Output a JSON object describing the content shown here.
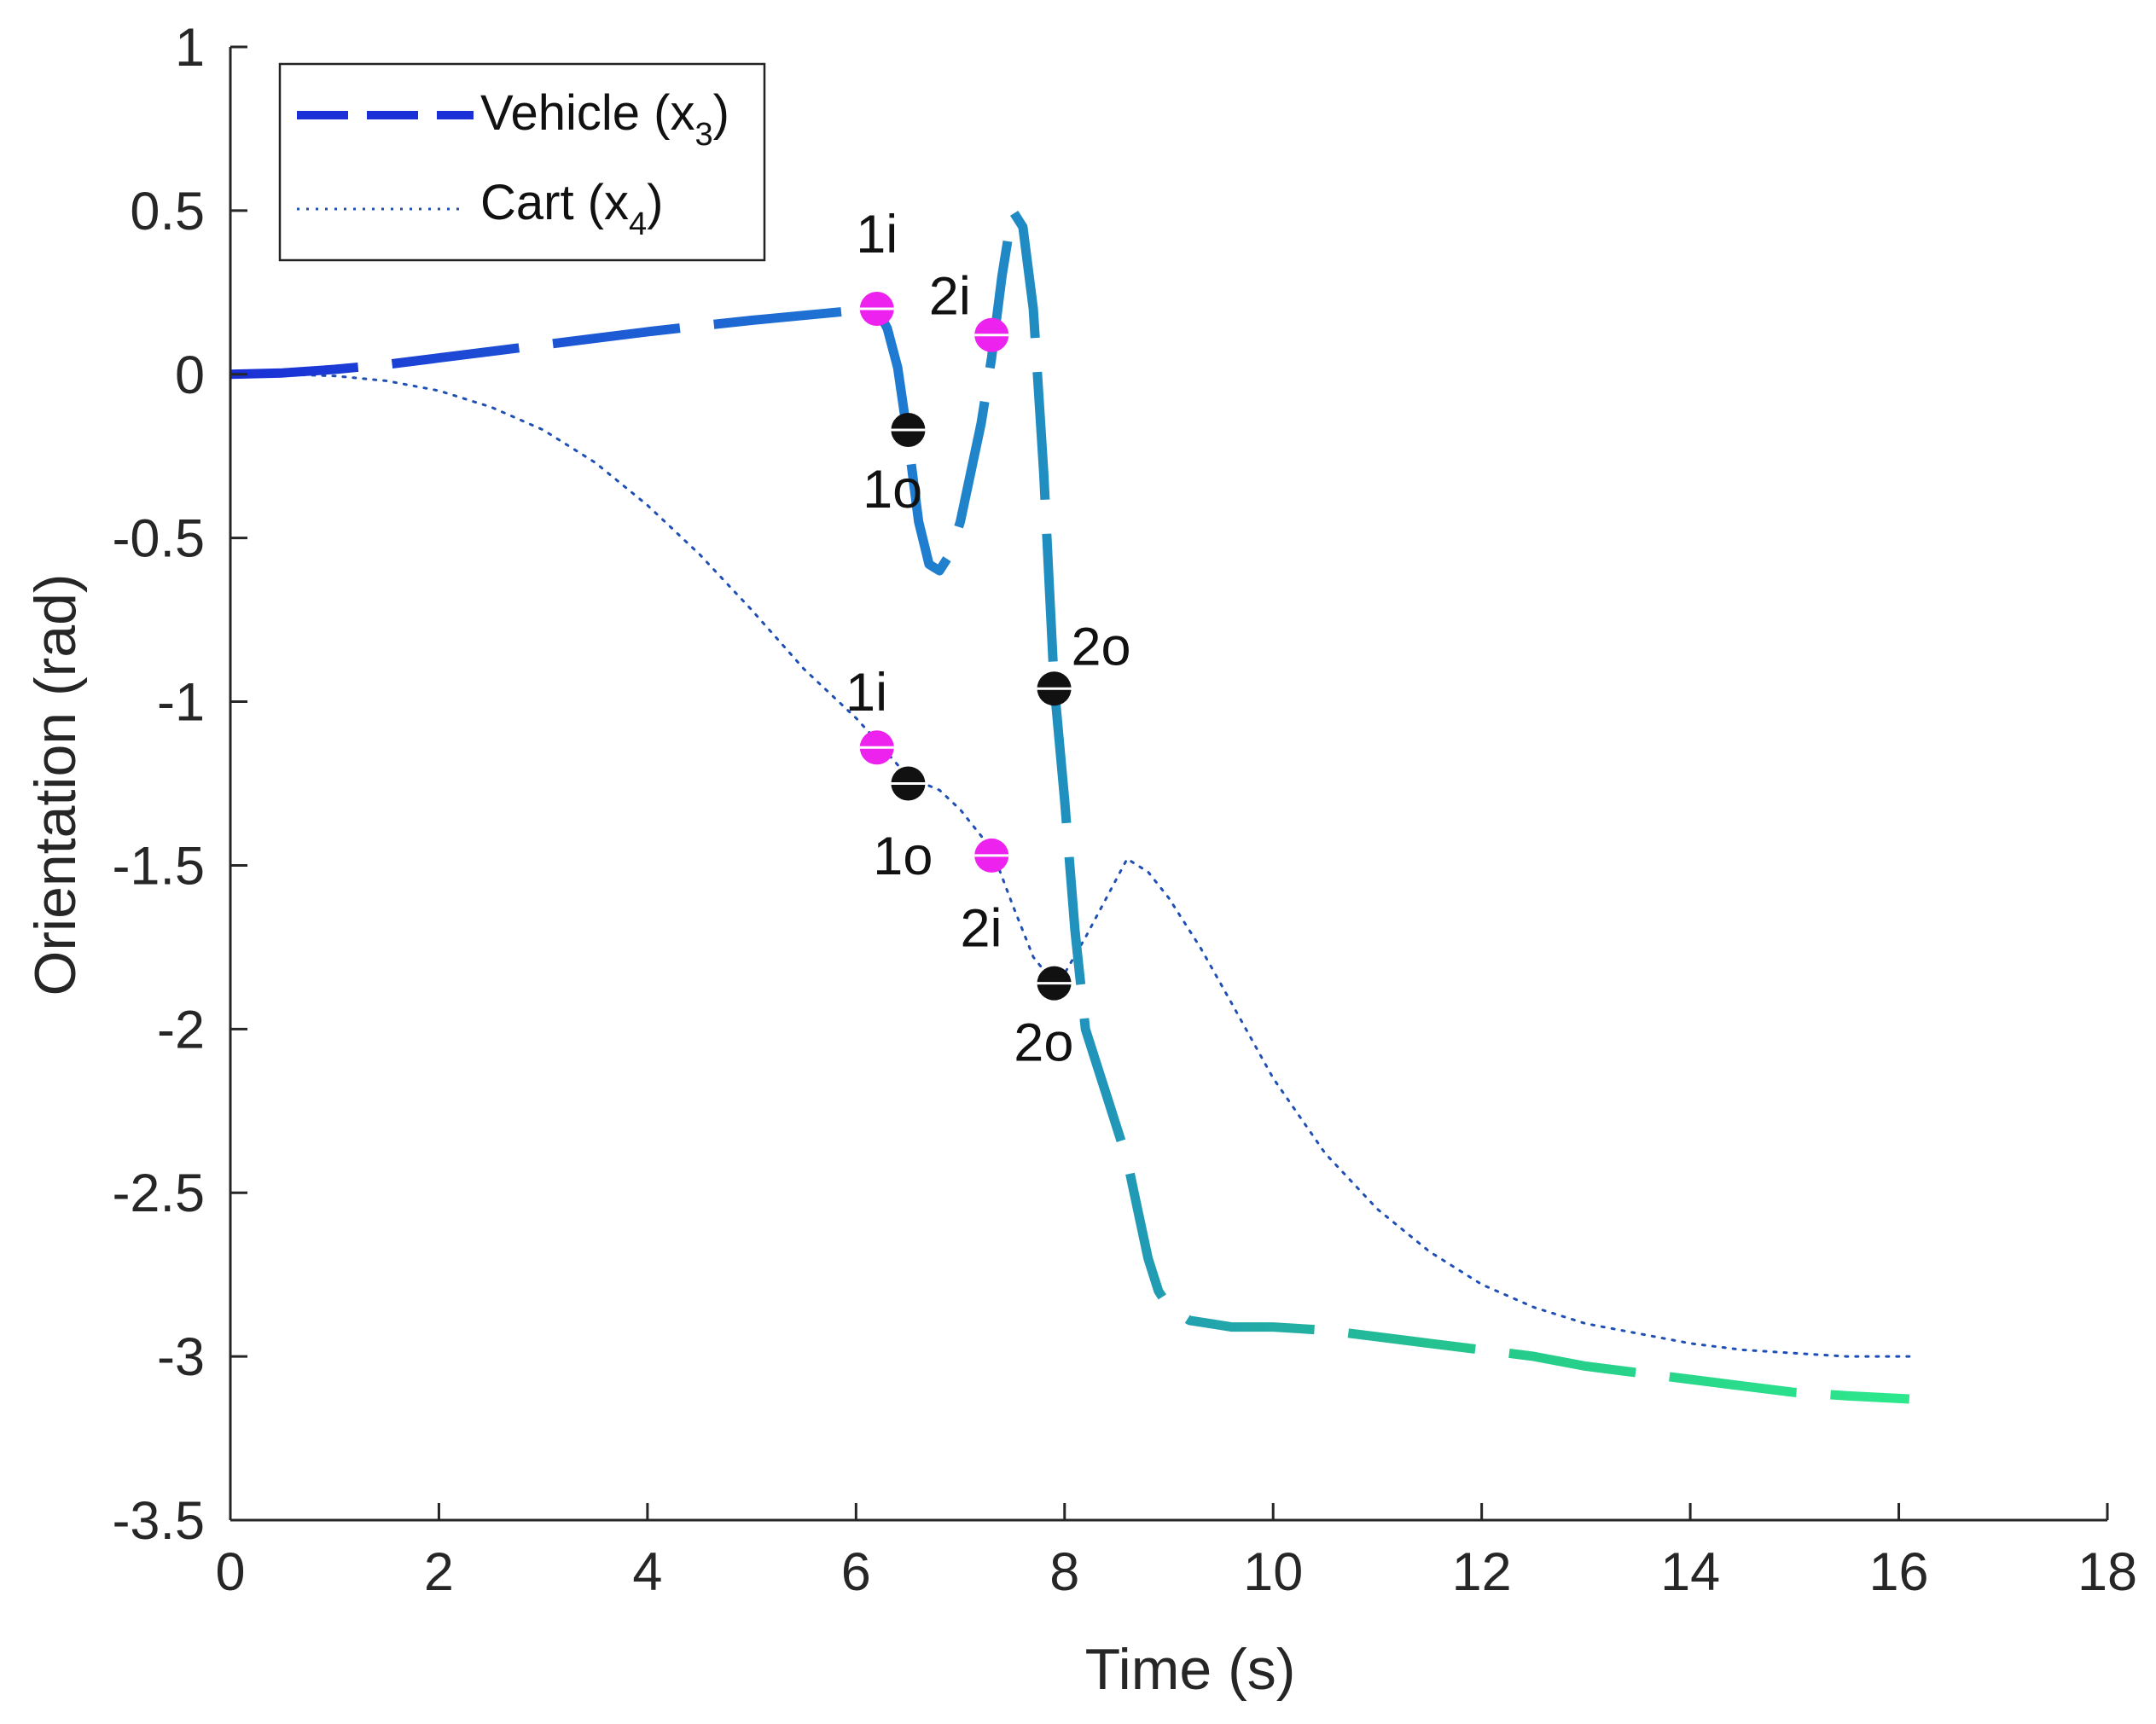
{
  "chart_data": {
    "type": "line",
    "title": "",
    "xlabel": "Time (s)",
    "ylabel": "Orientation (rad)",
    "xlim": [
      0,
      18
    ],
    "ylim": [
      -3.5,
      1
    ],
    "xticks": [
      0,
      2,
      4,
      6,
      8,
      10,
      12,
      14,
      16,
      18
    ],
    "xtick_labels": [
      "0",
      "2",
      "4",
      "6",
      "8",
      "10",
      "12",
      "14",
      "16",
      "18"
    ],
    "yticks": [
      1,
      0.5,
      0,
      -0.5,
      -1,
      -1.5,
      -2,
      -2.5,
      -3,
      -3.5
    ],
    "ytick_labels": [
      "1",
      "0.5",
      "0",
      "-0.5",
      "-1",
      "-1.5",
      "-2",
      "-2.5",
      "-3",
      "-3.5"
    ],
    "grid": false,
    "legend_position": "top-left",
    "series": [
      {
        "name": "Vehicle",
        "legend_label": "Vehicle (x",
        "legend_sub": "3",
        "style": "dashed",
        "colors": [
          "#1a2fd6",
          "#1f7bd2",
          "#24c98a",
          "#2de88c"
        ],
        "x": [
          0,
          0.5,
          1,
          1.5,
          2,
          2.5,
          3,
          3.5,
          4,
          4.5,
          5,
          5.5,
          6,
          6.2,
          6.3,
          6.4,
          6.5,
          6.6,
          6.7,
          6.8,
          6.9,
          7.0,
          7.1,
          7.2,
          7.3,
          7.4,
          7.5,
          7.6,
          7.7,
          7.8,
          7.9,
          8.0,
          8.1,
          8.2,
          8.3,
          8.4,
          8.5,
          8.6,
          8.7,
          8.8,
          8.9,
          9.0,
          9.2,
          9.4,
          9.6,
          9.8,
          10,
          10.5,
          11,
          11.5,
          12,
          12.5,
          13,
          13.5,
          14,
          14.5,
          15,
          15.5,
          16.1
        ],
        "y": [
          0,
          0.004,
          0.015,
          0.03,
          0.05,
          0.07,
          0.09,
          0.11,
          0.13,
          0.148,
          0.165,
          0.18,
          0.195,
          0.2,
          0.14,
          0.02,
          -0.2,
          -0.45,
          -0.58,
          -0.6,
          -0.55,
          -0.45,
          -0.3,
          -0.15,
          0.05,
          0.3,
          0.5,
          0.45,
          0.2,
          -0.3,
          -0.95,
          -1.3,
          -1.7,
          -2.0,
          -2.1,
          -2.2,
          -2.3,
          -2.4,
          -2.55,
          -2.7,
          -2.8,
          -2.85,
          -2.89,
          -2.9,
          -2.91,
          -2.91,
          -2.91,
          -2.92,
          -2.94,
          -2.96,
          -2.98,
          -3.0,
          -3.03,
          -3.05,
          -3.07,
          -3.09,
          -3.11,
          -3.12,
          -3.13
        ]
      },
      {
        "name": "Cart",
        "legend_label": "Cart (x",
        "legend_sub": "4",
        "style": "dotted",
        "color": "#1f4fb3",
        "x": [
          0,
          0.5,
          1,
          1.5,
          2,
          2.5,
          3,
          3.5,
          4,
          4.5,
          5,
          5.5,
          6,
          6.2,
          6.5,
          6.8,
          7.0,
          7.3,
          7.5,
          7.7,
          7.9,
          8.0,
          8.2,
          8.4,
          8.6,
          8.8,
          9.0,
          9.3,
          9.6,
          10,
          10.5,
          11,
          11.5,
          12,
          12.5,
          13,
          13.5,
          14,
          14.5,
          15,
          15.5,
          16.1
        ],
        "y": [
          0,
          0,
          -0.005,
          -0.02,
          -0.05,
          -0.1,
          -0.17,
          -0.27,
          -0.4,
          -0.55,
          -0.72,
          -0.9,
          -1.05,
          -1.12,
          -1.23,
          -1.27,
          -1.33,
          -1.45,
          -1.62,
          -1.78,
          -1.86,
          -1.83,
          -1.72,
          -1.6,
          -1.48,
          -1.52,
          -1.6,
          -1.75,
          -1.92,
          -2.15,
          -2.38,
          -2.55,
          -2.68,
          -2.78,
          -2.85,
          -2.9,
          -2.93,
          -2.96,
          -2.98,
          -2.99,
          -3.0,
          -3.0
        ]
      }
    ],
    "annotations": [
      {
        "label": "1i",
        "kind": "in",
        "x": 6.2,
        "y": 0.2,
        "label_dx": 0,
        "label_dy": 0.23
      },
      {
        "label": "1o",
        "kind": "out",
        "x": 6.5,
        "y": -0.17,
        "label_dx": -0.15,
        "label_dy": -0.18
      },
      {
        "label": "2i",
        "kind": "in",
        "x": 7.3,
        "y": 0.12,
        "label_dx": -0.4,
        "label_dy": 0.12
      },
      {
        "label": "2o",
        "kind": "out",
        "x": 7.9,
        "y": -0.96,
        "label_dx": 0.45,
        "label_dy": 0.13
      },
      {
        "label": "1i",
        "kind": "in",
        "x": 6.2,
        "y": -1.14,
        "label_dx": -0.1,
        "label_dy": 0.17
      },
      {
        "label": "1o",
        "kind": "out",
        "x": 6.5,
        "y": -1.25,
        "label_dx": -0.05,
        "label_dy": -0.22
      },
      {
        "label": "2i",
        "kind": "in",
        "x": 7.3,
        "y": -1.47,
        "label_dx": -0.1,
        "label_dy": -0.22
      },
      {
        "label": "2o",
        "kind": "out",
        "x": 7.9,
        "y": -1.86,
        "label_dx": -0.1,
        "label_dy": -0.18
      }
    ],
    "marker_colors": {
      "in": "#ee22ee",
      "out": "#111111"
    }
  }
}
